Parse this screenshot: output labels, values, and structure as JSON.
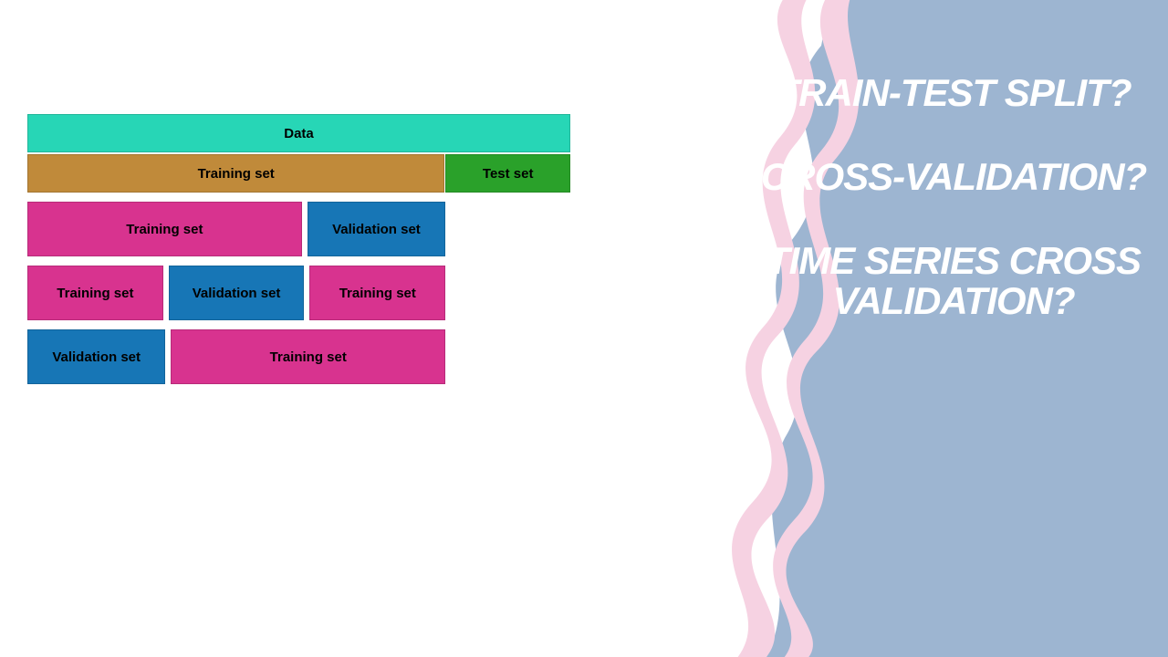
{
  "right_panel": {
    "background_color": "#9db5d1",
    "brush_color": "#f6d2e2",
    "headings": [
      "TRAIN-TEST SPLIT?",
      "CROSS-VALIDATION?",
      "TIME SERIES CROSS VALIDATION?"
    ],
    "heading_color": "#ffffff",
    "heading_fontsize": 42
  },
  "diagram": {
    "colors": {
      "data": "#27d6b6",
      "training_top": "#c08a3a",
      "test": "#2aa12a",
      "training_fold": "#d8338f",
      "validation": "#1776b6"
    },
    "row_data": {
      "label": "Data",
      "width_pct": 100
    },
    "row_split": {
      "training": {
        "label": "Training set",
        "width_pct": 77
      },
      "test": {
        "label": "Test set",
        "width_pct": 23
      }
    },
    "folds_width_pct": 77,
    "folds": [
      [
        {
          "label": "Training set",
          "type": "train",
          "flex": 2
        },
        {
          "label": "Validation set",
          "type": "val",
          "flex": 1
        }
      ],
      [
        {
          "label": "Training set",
          "type": "train",
          "flex": 1
        },
        {
          "label": "Validation set",
          "type": "val",
          "flex": 1
        },
        {
          "label": "Training set",
          "type": "train",
          "flex": 1
        }
      ],
      [
        {
          "label": "Validation set",
          "type": "val",
          "flex": 1
        },
        {
          "label": "Training set",
          "type": "train",
          "flex": 2
        }
      ]
    ]
  }
}
